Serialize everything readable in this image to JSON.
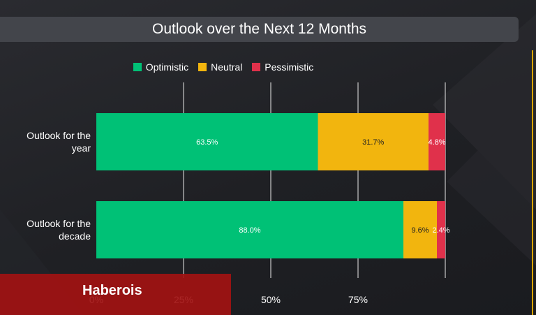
{
  "chart_data": {
    "type": "bar",
    "orientation": "horizontal",
    "stacked": true,
    "title": "Outlook over the Next 12 Months",
    "categories": [
      "Outlook for the year",
      "Outlook for the decade"
    ],
    "category_lines": [
      [
        "Outlook for the",
        "year"
      ],
      [
        "Outlook for the",
        "decade"
      ]
    ],
    "series": [
      {
        "name": "Optimistic",
        "values": [
          63.5,
          88.0
        ],
        "labels": [
          "63.5%",
          "88.0%"
        ],
        "color": "#00c176",
        "label_color": "#ffffff"
      },
      {
        "name": "Neutral",
        "values": [
          31.7,
          9.6
        ],
        "labels": [
          "31.7%",
          "9.6%"
        ],
        "color": "#f2b50e",
        "label_color": "#222222"
      },
      {
        "name": "Pessimistic",
        "values": [
          4.8,
          2.4
        ],
        "labels": [
          "4.8%",
          "2.4%"
        ],
        "color": "#e0314b",
        "label_color": "#ffffff"
      }
    ],
    "xlim": [
      0,
      100
    ],
    "xticks": [
      0,
      25,
      50,
      75
    ],
    "xtick_labels": [
      "0%",
      "25%",
      "50%",
      "75%"
    ],
    "legend_position": "top",
    "grid": "vertical"
  },
  "watermark": {
    "text": "Haberois",
    "color": "#a21212"
  },
  "colors": {
    "background": "#1f2024",
    "title_bar": "#43454b",
    "accent_line": "#d9a400"
  }
}
